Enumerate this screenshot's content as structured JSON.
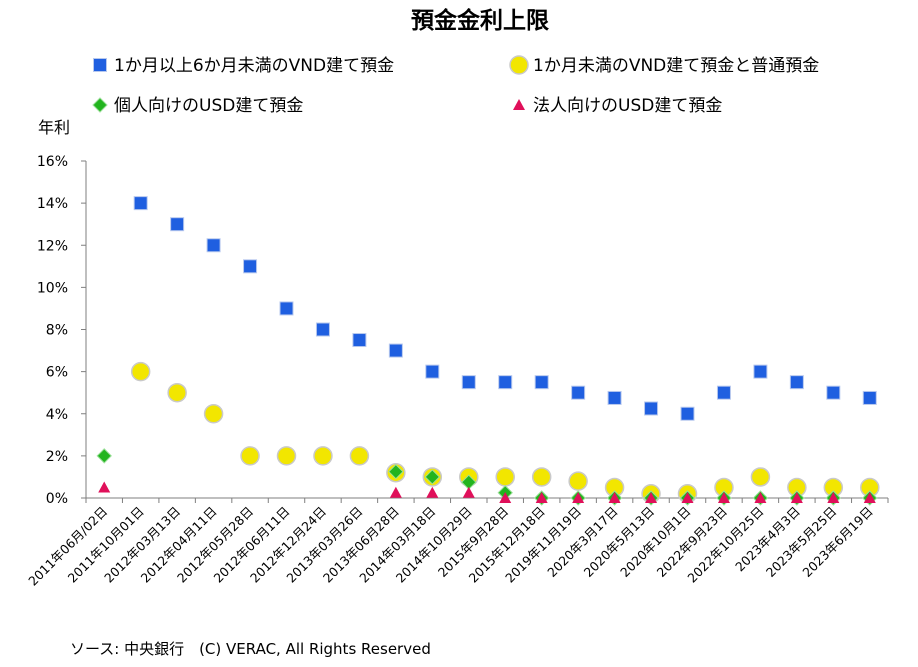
{
  "chart_data": {
    "type": "scatter",
    "title": "預金金利上限",
    "ylabel": "年利",
    "xlabel": "",
    "ylim": [
      0,
      16
    ],
    "yticks": [
      "0%",
      "2%",
      "4%",
      "6%",
      "8%",
      "10%",
      "12%",
      "14%",
      "16%"
    ],
    "grid": false,
    "legend_position": "top",
    "categories": [
      "2011年06月/02日",
      "2011年10月01日",
      "2012年03月13日",
      "2012年04月11日",
      "2012年05月28日",
      "2012年06月11日",
      "2012年12月24日",
      "2013年03月26日",
      "2013年06月28日",
      "2014年03月18日",
      "2014年10月29日",
      "2015年9月28日",
      "2015年12月18日",
      "2019年11月19日",
      "2020年3月17日",
      "2020年5月13日",
      "2020年10月1日",
      "2022年9月23日",
      "2022年10月25日",
      "2023年4月3日",
      "2023年5月25日",
      "2023年6月19日"
    ],
    "series": [
      {
        "name": "1か月以上6か月未満のVND建て預金",
        "marker": "square",
        "color": "#1f5fe0",
        "values": [
          null,
          14,
          13,
          12,
          11,
          9,
          8,
          7.5,
          7,
          6,
          5.5,
          5.5,
          5.5,
          5,
          4.75,
          4.25,
          4,
          5,
          6,
          5.5,
          5,
          4.75
        ]
      },
      {
        "name": "1か月未満のVND建て預金と普通預金",
        "marker": "circle",
        "color": "#f2e600",
        "values": [
          null,
          6,
          5,
          4,
          2,
          2,
          2,
          2,
          1.2,
          1,
          1,
          1,
          1,
          0.8,
          0.5,
          0.2,
          0.2,
          0.5,
          1,
          0.5,
          0.5,
          0.5
        ]
      },
      {
        "name": "個人向けのUSD建て預金",
        "marker": "diamond",
        "color": "#22b41e",
        "values": [
          2,
          null,
          null,
          null,
          null,
          null,
          null,
          null,
          1.25,
          1,
          0.75,
          0.25,
          0,
          0,
          0,
          0,
          0,
          0,
          0,
          0,
          0,
          0
        ]
      },
      {
        "name": "法人向けのUSD建て預金",
        "marker": "triangle",
        "color": "#e0105a",
        "values": [
          0.5,
          null,
          null,
          null,
          null,
          null,
          null,
          null,
          0.25,
          0.25,
          0.25,
          0,
          0,
          0,
          0,
          0,
          0,
          0,
          0,
          0,
          0,
          0
        ]
      }
    ]
  },
  "footer": {
    "source_text": "ソース: 中央銀行　(C) VERAC, All Rights Reserved"
  }
}
